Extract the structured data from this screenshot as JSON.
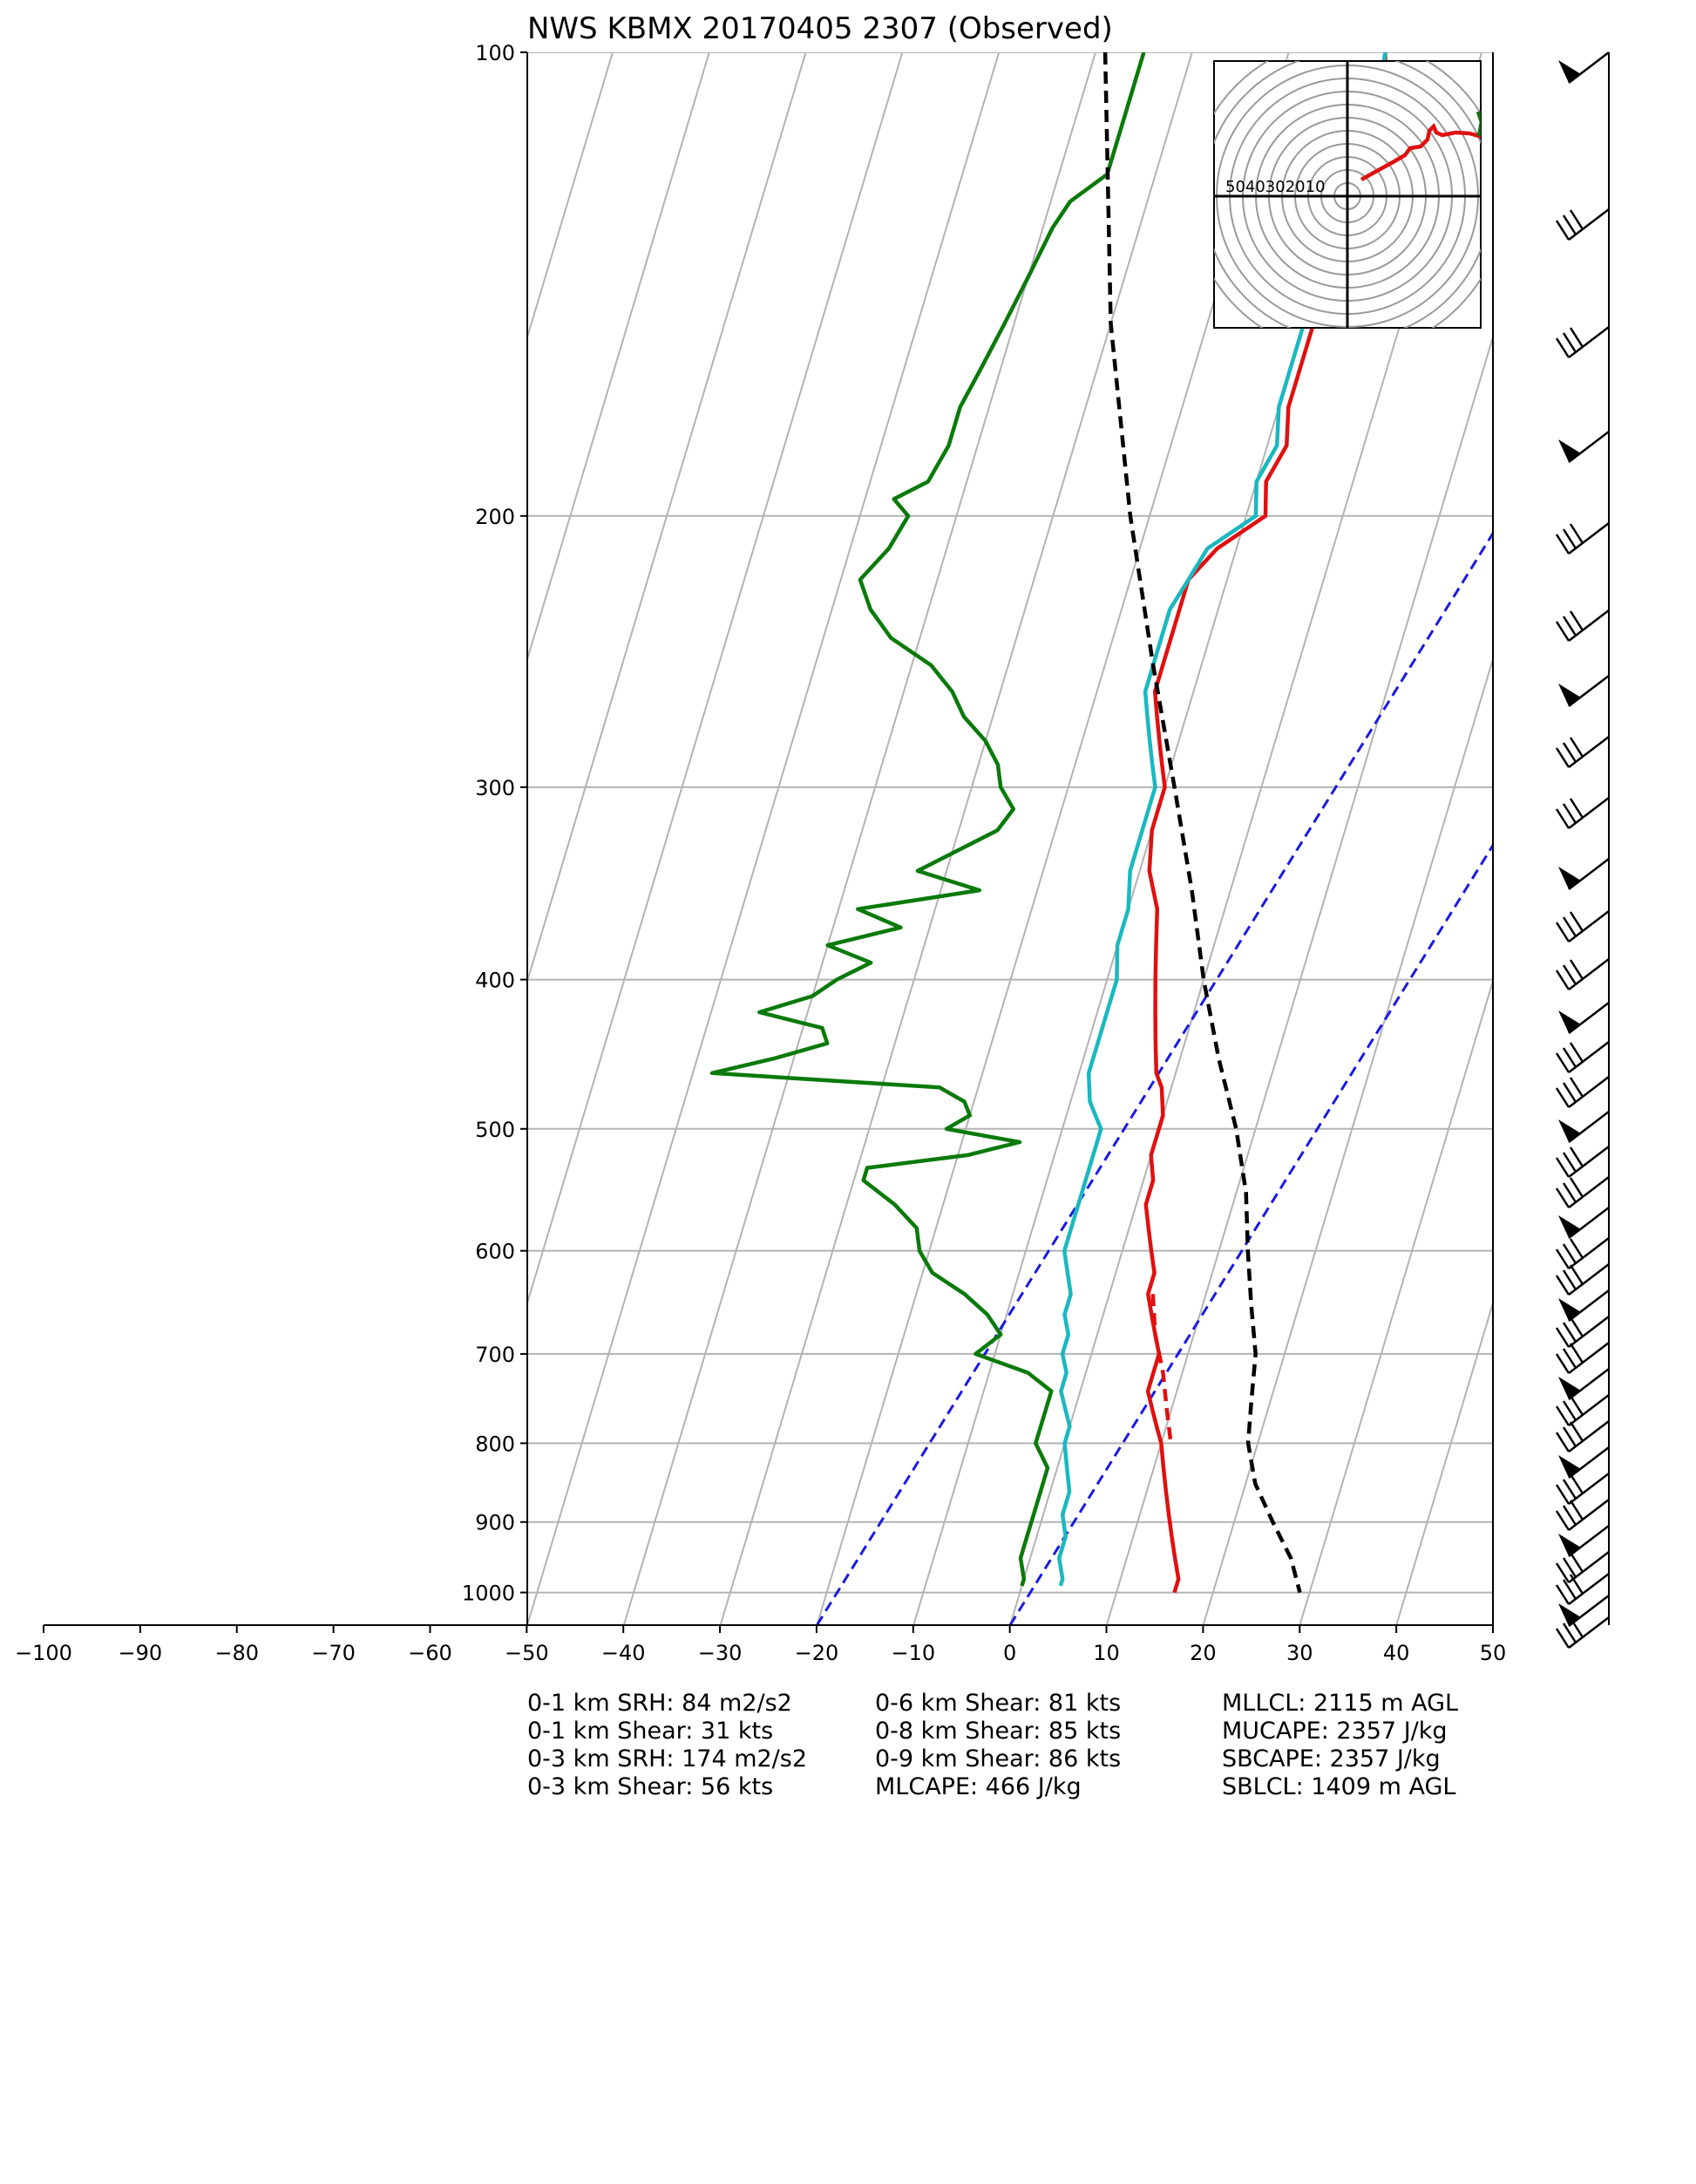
{
  "chart_data": {
    "type": "line",
    "title": "NWS KBMX 20170405 2307   (Observed)",
    "x_axis": {
      "label": "",
      "range": [
        -100,
        50
      ],
      "ticks": [
        -100,
        -90,
        -80,
        -70,
        -60,
        -50,
        -40,
        -30,
        -20,
        -10,
        0,
        10,
        20,
        30,
        40,
        50
      ]
    },
    "y_axis": {
      "label": "",
      "scale": "log",
      "range": [
        1050,
        100
      ],
      "ticks": [
        100,
        200,
        300,
        400,
        500,
        600,
        700,
        800,
        900,
        1000
      ]
    },
    "grid": true,
    "series": [
      {
        "color": "#e01010",
        "style": "solid",
        "points": [
          [
            100,
            -10
          ],
          [
            110,
            -8
          ],
          [
            120,
            -7
          ],
          [
            125,
            -6
          ],
          [
            130,
            -10
          ],
          [
            140,
            -9
          ],
          [
            150,
            -9
          ],
          [
            160,
            -9
          ],
          [
            170,
            -9
          ],
          [
            180,
            -8
          ],
          [
            190,
            -9
          ],
          [
            200,
            -8
          ],
          [
            210,
            -12
          ],
          [
            220,
            -14
          ],
          [
            230,
            -14
          ],
          [
            240,
            -14
          ],
          [
            250,
            -14
          ],
          [
            260,
            -14
          ],
          [
            270,
            -13
          ],
          [
            280,
            -12
          ],
          [
            290,
            -11
          ],
          [
            300,
            -10
          ],
          [
            320,
            -10
          ],
          [
            340,
            -9
          ],
          [
            360,
            -7
          ],
          [
            380,
            -6
          ],
          [
            400,
            -5
          ],
          [
            420,
            -4
          ],
          [
            440,
            -3
          ],
          [
            460,
            -2
          ],
          [
            470,
            -1
          ],
          [
            490,
            0
          ],
          [
            500,
            0
          ],
          [
            520,
            0
          ],
          [
            540,
            1
          ],
          [
            560,
            1
          ],
          [
            580,
            2
          ],
          [
            600,
            3
          ],
          [
            620,
            4
          ],
          [
            640,
            4
          ],
          [
            660,
            5
          ],
          [
            680,
            6
          ],
          [
            700,
            7
          ],
          [
            720,
            7
          ],
          [
            740,
            7
          ],
          [
            760,
            8
          ],
          [
            780,
            9
          ],
          [
            800,
            10
          ],
          [
            830,
            11
          ],
          [
            860,
            12
          ],
          [
            890,
            13
          ],
          [
            920,
            14
          ],
          [
            950,
            15
          ],
          [
            980,
            16
          ],
          [
            1000,
            16
          ]
        ]
      },
      {
        "color": "#e01010",
        "style": "dashed",
        "points": [
          [
            640,
            4.5
          ],
          [
            680,
            6
          ],
          [
            720,
            8
          ],
          [
            760,
            9.5
          ],
          [
            800,
            11
          ]
        ]
      },
      {
        "color": "#1ab8c0",
        "style": "solid",
        "points": [
          [
            100,
            -10
          ],
          [
            110,
            -9
          ],
          [
            120,
            -8
          ],
          [
            125,
            -7
          ],
          [
            130,
            -10
          ],
          [
            140,
            -10
          ],
          [
            150,
            -10
          ],
          [
            160,
            -10
          ],
          [
            170,
            -10
          ],
          [
            180,
            -9
          ],
          [
            190,
            -10
          ],
          [
            200,
            -9
          ],
          [
            210,
            -13
          ],
          [
            220,
            -14
          ],
          [
            230,
            -15
          ],
          [
            240,
            -15
          ],
          [
            250,
            -15
          ],
          [
            260,
            -15
          ],
          [
            270,
            -14
          ],
          [
            280,
            -13
          ],
          [
            290,
            -12
          ],
          [
            300,
            -11
          ],
          [
            320,
            -11
          ],
          [
            340,
            -11
          ],
          [
            360,
            -10
          ],
          [
            380,
            -10
          ],
          [
            400,
            -9
          ],
          [
            420,
            -9
          ],
          [
            440,
            -9
          ],
          [
            460,
            -9
          ],
          [
            480,
            -8
          ],
          [
            490,
            -7
          ],
          [
            500,
            -6
          ],
          [
            520,
            -6
          ],
          [
            540,
            -6
          ],
          [
            560,
            -6
          ],
          [
            580,
            -6
          ],
          [
            600,
            -6
          ],
          [
            620,
            -5
          ],
          [
            640,
            -4
          ],
          [
            660,
            -4
          ],
          [
            680,
            -3
          ],
          [
            700,
            -3
          ],
          [
            720,
            -2
          ],
          [
            740,
            -2
          ],
          [
            760,
            -1
          ],
          [
            780,
            0
          ],
          [
            800,
            0
          ],
          [
            830,
            1
          ],
          [
            860,
            2
          ],
          [
            890,
            2
          ],
          [
            920,
            3
          ],
          [
            950,
            3
          ],
          [
            980,
            4
          ],
          [
            990,
            4
          ]
        ]
      },
      {
        "color": "#0a7a0a",
        "style": "solid",
        "points": [
          [
            100,
            -35
          ],
          [
            110,
            -35
          ],
          [
            120,
            -35
          ],
          [
            125,
            -38
          ],
          [
            130,
            -39
          ],
          [
            140,
            -40
          ],
          [
            150,
            -41
          ],
          [
            160,
            -42
          ],
          [
            170,
            -43
          ],
          [
            180,
            -43
          ],
          [
            190,
            -44
          ],
          [
            195,
            -47
          ],
          [
            200,
            -45
          ],
          [
            210,
            -46
          ],
          [
            220,
            -48
          ],
          [
            230,
            -46
          ],
          [
            240,
            -43
          ],
          [
            250,
            -38
          ],
          [
            260,
            -35
          ],
          [
            270,
            -33
          ],
          [
            280,
            -30
          ],
          [
            290,
            -28
          ],
          [
            300,
            -27
          ],
          [
            310,
            -25
          ],
          [
            320,
            -26
          ],
          [
            340,
            -33
          ],
          [
            350,
            -26
          ],
          [
            360,
            -38
          ],
          [
            370,
            -33
          ],
          [
            380,
            -40
          ],
          [
            390,
            -35
          ],
          [
            400,
            -38
          ],
          [
            410,
            -40
          ],
          [
            420,
            -45
          ],
          [
            430,
            -38
          ],
          [
            440,
            -37
          ],
          [
            450,
            -42
          ],
          [
            460,
            -48
          ],
          [
            470,
            -24
          ],
          [
            480,
            -21
          ],
          [
            490,
            -20
          ],
          [
            500,
            -22
          ],
          [
            510,
            -14
          ],
          [
            520,
            -19
          ],
          [
            530,
            -29
          ],
          [
            540,
            -29
          ],
          [
            560,
            -25
          ],
          [
            580,
            -22
          ],
          [
            600,
            -21
          ],
          [
            620,
            -19
          ],
          [
            640,
            -15
          ],
          [
            660,
            -12
          ],
          [
            680,
            -10
          ],
          [
            700,
            -12
          ],
          [
            720,
            -6
          ],
          [
            740,
            -3
          ],
          [
            760,
            -3
          ],
          [
            780,
            -3
          ],
          [
            800,
            -3
          ],
          [
            830,
            -1
          ],
          [
            860,
            -1
          ],
          [
            890,
            -1
          ],
          [
            920,
            -1
          ],
          [
            950,
            -1
          ],
          [
            980,
            0
          ],
          [
            990,
            0
          ]
        ]
      },
      {
        "color": "#000000",
        "style": "dashed",
        "points": [
          [
            100,
            -39
          ],
          [
            150,
            -30
          ],
          [
            200,
            -22
          ],
          [
            250,
            -15
          ],
          [
            300,
            -9
          ],
          [
            350,
            -4
          ],
          [
            400,
            0
          ],
          [
            450,
            4
          ],
          [
            500,
            8
          ],
          [
            550,
            11
          ],
          [
            600,
            13
          ],
          [
            650,
            15
          ],
          [
            700,
            17
          ],
          [
            750,
            18
          ],
          [
            800,
            19
          ],
          [
            850,
            21
          ],
          [
            900,
            24
          ],
          [
            950,
            27
          ],
          [
            1000,
            29
          ]
        ]
      }
    ],
    "mixing_lines": [
      -20,
      0
    ],
    "wind_barbs_shown": true,
    "hodograph": {
      "rings": [
        10,
        20,
        30,
        40,
        50
      ],
      "ring_labels": "5040302010"
    },
    "indices": [
      [
        "0-1 km SRH: 84 m2/s2",
        "0-1 km Shear: 31 kts",
        "0-3 km SRH: 174 m2/s2",
        "0-3 km Shear: 56 kts"
      ],
      [
        "0-6 km Shear: 81 kts",
        "0-8 km Shear: 85 kts",
        "0-9 km Shear: 86 kts",
        "MLCAPE: 466 J/kg"
      ],
      [
        "MLLCL: 2115 m AGL",
        "MUCAPE: 2357 J/kg",
        "SBCAPE: 2357 J/kg",
        "SBLCL: 1409 m AGL"
      ]
    ]
  }
}
